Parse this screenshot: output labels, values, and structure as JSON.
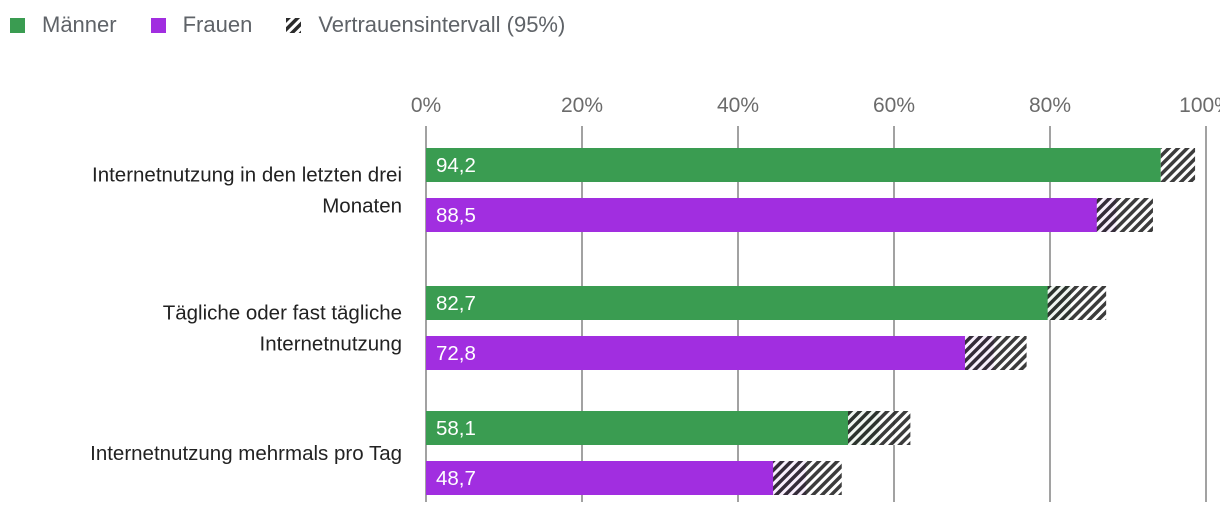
{
  "chart_data": {
    "type": "bar",
    "orientation": "horizontal",
    "categories": [
      [
        "Internetnutzung in den letzten drei",
        "Monaten"
      ],
      [
        "Tägliche oder fast tägliche",
        "Internetnutzung"
      ],
      [
        "Internetnutzung mehrmals pro Tag"
      ]
    ],
    "series": [
      {
        "name": "Männer",
        "color": "#3a9c51",
        "values": [
          94.2,
          82.7,
          58.1
        ],
        "value_labels": [
          "94,2",
          "82,7",
          "58,1"
        ],
        "ci": [
          [
            94.2,
            98.6
          ],
          [
            79.7,
            87.2
          ],
          [
            54.1,
            62.1
          ]
        ]
      },
      {
        "name": "Frauen",
        "color": "#a12ee0",
        "values": [
          88.5,
          72.8,
          48.7
        ],
        "value_labels": [
          "88,5",
          "72,8",
          "48,7"
        ],
        "ci": [
          [
            86.0,
            93.2
          ],
          [
            69.1,
            77.0
          ],
          [
            44.5,
            53.3
          ]
        ]
      }
    ],
    "ci_legend": "Vertrauensintervall (95%)",
    "x_ticks": [
      "0%",
      "20%",
      "40%",
      "60%",
      "80%",
      "100%"
    ],
    "x_tick_values": [
      0,
      20,
      40,
      60,
      80,
      100
    ],
    "xlim": [
      0,
      100
    ],
    "grid": true,
    "legend_position": "top-left"
  }
}
